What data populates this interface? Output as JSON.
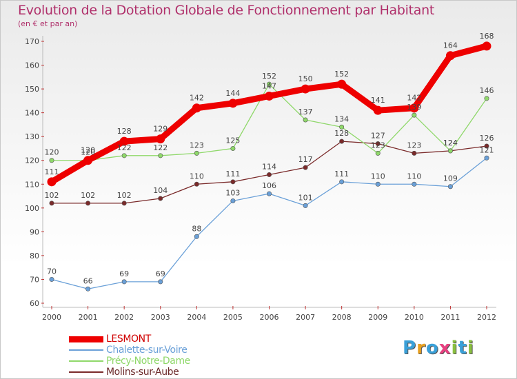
{
  "header": {
    "title": "Evolution de la Dotation Globale de Fonctionnement par Habitant",
    "subtitle": "(en € et par an)"
  },
  "chart_data": {
    "type": "line",
    "title": "Evolution de la Dotation Globale de Fonctionnement par Habitant",
    "subtitle": "(en € et par an)",
    "xlabel": "",
    "ylabel": "",
    "ylim": [
      60,
      170
    ],
    "yticks": [
      60,
      70,
      80,
      90,
      100,
      110,
      120,
      130,
      140,
      150,
      160,
      170
    ],
    "grid": false,
    "legend_position": "bottom",
    "categories": [
      "2000",
      "2001",
      "2002",
      "2003",
      "2004",
      "2005",
      "2006",
      "2007",
      "2008",
      "2009",
      "2010",
      "2011",
      "2012"
    ],
    "series": [
      {
        "name": "LESMONT",
        "color": "#ee0000",
        "values": [
          111,
          120,
          128,
          129,
          142,
          144,
          147,
          150,
          152,
          141,
          142,
          164,
          168
        ]
      },
      {
        "name": "Chalette-sur-Voire",
        "color": "#6aa0d8",
        "values": [
          70,
          66,
          69,
          69,
          88,
          103,
          106,
          101,
          111,
          110,
          110,
          109,
          121
        ]
      },
      {
        "name": "Précy-Notre-Dame",
        "color": "#8fd86a",
        "values": [
          120,
          120,
          122,
          122,
          123,
          125,
          152,
          137,
          134,
          123,
          139,
          124,
          146
        ]
      },
      {
        "name": "Molins-sur-Aube",
        "color": "#7a2a2a",
        "values": [
          102,
          102,
          102,
          104,
          110,
          111,
          114,
          117,
          128,
          127,
          123,
          124,
          126
        ]
      }
    ]
  },
  "logo": {
    "text": "Proxiti",
    "letters": [
      "P",
      "r",
      "o",
      "x",
      "i",
      "t",
      "i"
    ],
    "colors": [
      "#3aa0d8",
      "#e8a020",
      "#3aa0d8",
      "#e84080",
      "#8ac040",
      "#3aa0d8",
      "#8ac040"
    ]
  }
}
